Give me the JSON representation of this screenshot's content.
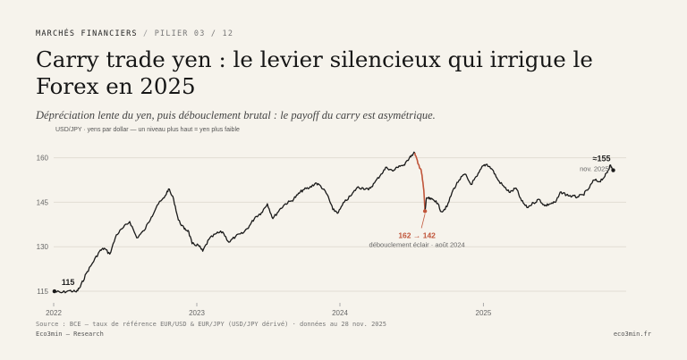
{
  "header": {
    "kicker": "MARCHÉS FINANCIERS",
    "kicker_sep": "/",
    "kicker_sub": "PILIER 03 / 12",
    "title": "Carry trade yen : le levier silencieux qui irrigue le Forex en 2025",
    "subtitle": "Dépréciation lente du yen, puis débouclement brutal : le payoff du carry est asymétrique.",
    "ylabel": "USD/JPY · yens par dollar — un niveau plus haut = yen plus faible"
  },
  "colors": {
    "line": "#1a1a1a",
    "accent": "#c0553a",
    "grid": "#e2ddd3",
    "background": "#f6f3ec"
  },
  "chart_data": {
    "type": "line",
    "ylim": [
      112,
      165
    ],
    "yticks": [
      115,
      130,
      145,
      160
    ],
    "xlim": [
      "2022-01-01",
      "2025-12-31"
    ],
    "xticks": [
      {
        "label": "2022",
        "x": "2022-01-01"
      },
      {
        "label": "2023",
        "x": "2023-01-01"
      },
      {
        "label": "2024",
        "x": "2024-01-01"
      },
      {
        "label": "2025",
        "x": "2025-01-01"
      }
    ],
    "grid": true,
    "series": [
      {
        "x": [
          "2022-01-03",
          "2022-01-20",
          "2022-02-10",
          "2022-02-28",
          "2022-03-10",
          "2022-03-25",
          "2022-04-10",
          "2022-04-28",
          "2022-05-10",
          "2022-05-24",
          "2022-06-10",
          "2022-06-28",
          "2022-07-14",
          "2022-08-01",
          "2022-08-20",
          "2022-09-07",
          "2022-09-22",
          "2022-10-10",
          "2022-10-21",
          "2022-11-03",
          "2022-11-15",
          "2022-11-30",
          "2022-12-10",
          "2022-12-20",
          "2023-01-05",
          "2023-01-16",
          "2023-02-01",
          "2023-02-20",
          "2023-03-08",
          "2023-03-24",
          "2023-04-10",
          "2023-04-28",
          "2023-05-15",
          "2023-05-30",
          "2023-06-15",
          "2023-06-30",
          "2023-07-14",
          "2023-07-31",
          "2023-08-15",
          "2023-08-31",
          "2023-09-15",
          "2023-09-29",
          "2023-10-15",
          "2023-10-31",
          "2023-11-13",
          "2023-11-30",
          "2023-12-14",
          "2023-12-28",
          "2024-01-12",
          "2024-01-31",
          "2024-02-14",
          "2024-02-29",
          "2024-03-14",
          "2024-03-29",
          "2024-04-15",
          "2024-04-29",
          "2024-05-15",
          "2024-05-31",
          "2024-06-14",
          "2024-06-28",
          "2024-07-10",
          "2024-07-18",
          "2024-07-26",
          "2024-08-02",
          "2024-08-05",
          "2024-08-09",
          "2024-08-20",
          "2024-09-02",
          "2024-09-16",
          "2024-09-30",
          "2024-10-15",
          "2024-10-31",
          "2024-11-15",
          "2024-11-30",
          "2024-12-16",
          "2024-12-31",
          "2025-01-10",
          "2025-01-24",
          "2025-02-07",
          "2025-02-24",
          "2025-03-10",
          "2025-03-25",
          "2025-04-08",
          "2025-04-22",
          "2025-05-09",
          "2025-05-23",
          "2025-06-06",
          "2025-06-20",
          "2025-07-04",
          "2025-07-18",
          "2025-08-01",
          "2025-08-15",
          "2025-08-29",
          "2025-09-12",
          "2025-09-26",
          "2025-10-10",
          "2025-10-24",
          "2025-11-07",
          "2025-11-14",
          "2025-11-20",
          "2025-11-28"
        ],
        "values": [
          115,
          114.5,
          115.2,
          114.8,
          116.5,
          121,
          124.5,
          128.5,
          129.5,
          127.5,
          134,
          136.5,
          138.5,
          133,
          135.5,
          140,
          144,
          146.5,
          149.5,
          146,
          139,
          136,
          135.5,
          131,
          130.5,
          128.5,
          132.5,
          134.5,
          135,
          131.5,
          133.5,
          134.5,
          137,
          140,
          141.5,
          144.5,
          139.5,
          142.5,
          144.5,
          145.5,
          147.5,
          149.2,
          149.8,
          151.5,
          150.5,
          147.5,
          142.5,
          141.5,
          145,
          147.5,
          150,
          149.8,
          149.2,
          151.5,
          154.5,
          156.8,
          155.5,
          157.3,
          157.5,
          160.5,
          161.7,
          158,
          156,
          149,
          142,
          146.5,
          146,
          145.5,
          141.8,
          143.5,
          149,
          152.5,
          154.5,
          151,
          153.8,
          157.3,
          157.8,
          156,
          152.5,
          150,
          148.3,
          149.8,
          145.5,
          143.2,
          144.8,
          146,
          143.8,
          144.5,
          145,
          148.5,
          147.5,
          147,
          146.8,
          147.5,
          149.5,
          152.5,
          152,
          153.8,
          155.5,
          157.5,
          155.8
        ]
      }
    ],
    "annotations": {
      "start_label": "115",
      "end_value": "≈155",
      "end_label": "nov. 2025",
      "crash_values": "162 → 142",
      "crash_label": "débouclement éclair · août 2024"
    }
  },
  "footer": {
    "source": "Source : BCE — taux de référence EUR/USD & EUR/JPY (USD/JPY dérivé) · données au 28 nov. 2025",
    "left": "Eco3min — Research",
    "right": "eco3min.fr"
  }
}
